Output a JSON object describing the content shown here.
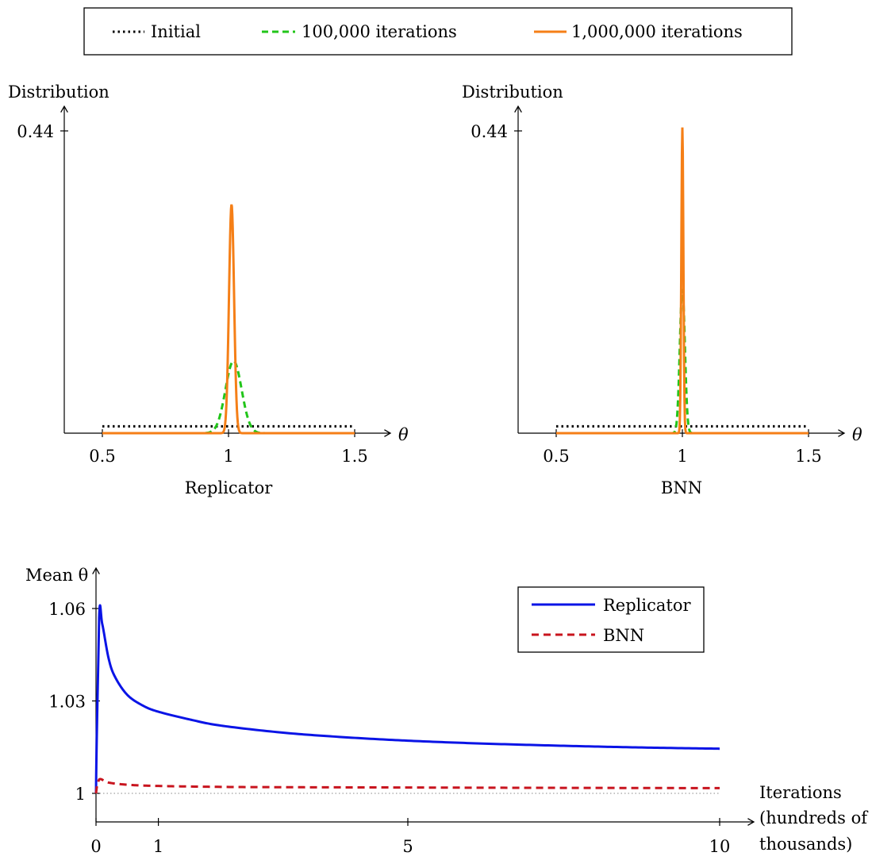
{
  "legend_top": {
    "initial": "Initial",
    "iter100k": "100,000 iterations",
    "iter1m": "1,000,000 iterations"
  },
  "colors": {
    "initial": "#000000",
    "iter100k": "#22c51a",
    "iter1m": "#f57f17",
    "replicator": "#0a14e6",
    "bnn": "#c8141e",
    "baseline": "#888888"
  },
  "chart_data": [
    {
      "type": "line",
      "title": "Replicator",
      "ylabel": "Distribution",
      "xlabel": "θ",
      "xlim": [
        0.5,
        1.5
      ],
      "ylim": [
        0,
        0.44
      ],
      "xticks": [
        "0.5",
        "1",
        "1.5"
      ],
      "yticks": [
        "0.44"
      ],
      "series": [
        {
          "name": "Initial",
          "style": "dotted",
          "x": [
            0.5,
            1.5
          ],
          "y": [
            0.01,
            0.01
          ]
        },
        {
          "name": "100,000 iterations",
          "style": "dashed",
          "peak_x": 1.02,
          "peak_y": 0.105,
          "width": 0.032
        },
        {
          "name": "1,000,000 iterations",
          "style": "solid",
          "peak_x": 1.012,
          "peak_y": 0.333,
          "width": 0.01
        }
      ]
    },
    {
      "type": "line",
      "title": "BNN",
      "ylabel": "Distribution",
      "xlabel": "θ",
      "xlim": [
        0.5,
        1.5
      ],
      "ylim": [
        0,
        0.44
      ],
      "xticks": [
        "0.5",
        "1",
        "1.5"
      ],
      "yticks": [
        "0.44"
      ],
      "series": [
        {
          "name": "Initial",
          "style": "dotted",
          "x": [
            0.5,
            1.5
          ],
          "y": [
            0.01,
            0.01
          ]
        },
        {
          "name": "100,000 iterations",
          "style": "dashed",
          "peak_x": 1.0,
          "peak_y": 0.21,
          "width": 0.01
        },
        {
          "name": "1,000,000 iterations",
          "style": "solid",
          "peak_x": 1.0,
          "peak_y": 0.445,
          "width": 0.004
        }
      ]
    },
    {
      "type": "line",
      "ylabel": "Mean θ",
      "xlabel": "Iterations (hundreds of thousands)",
      "xlabel_lines": [
        "Iterations",
        "(hundreds of",
        "thousands)"
      ],
      "xlim": [
        0,
        10
      ],
      "ylim": [
        1,
        1.06
      ],
      "xticks": [
        "0",
        "1",
        "5",
        "10"
      ],
      "yticks": [
        "1",
        "1.03",
        "1.06"
      ],
      "legend": "top-right",
      "series": [
        {
          "name": "Replicator",
          "style": "solid",
          "x": [
            0,
            0.05,
            0.1,
            0.2,
            0.3,
            0.5,
            0.75,
            1,
            1.5,
            2,
            3,
            4,
            5,
            6,
            7,
            8,
            9,
            10
          ],
          "y": [
            1.0,
            1.057,
            1.055,
            1.044,
            1.038,
            1.032,
            1.0285,
            1.0265,
            1.024,
            1.022,
            1.0197,
            1.0182,
            1.0171,
            1.0163,
            1.0157,
            1.0152,
            1.0148,
            1.0145
          ]
        },
        {
          "name": "BNN",
          "style": "dashed",
          "x": [
            0,
            0.05,
            0.2,
            0.5,
            1,
            2,
            3,
            5,
            7,
            10
          ],
          "y": [
            1.0,
            1.0045,
            1.0035,
            1.0028,
            1.0024,
            1.0021,
            1.002,
            1.0019,
            1.0018,
            1.0017
          ]
        }
      ],
      "reference_line": {
        "style": "dotted",
        "y": 1
      }
    }
  ]
}
